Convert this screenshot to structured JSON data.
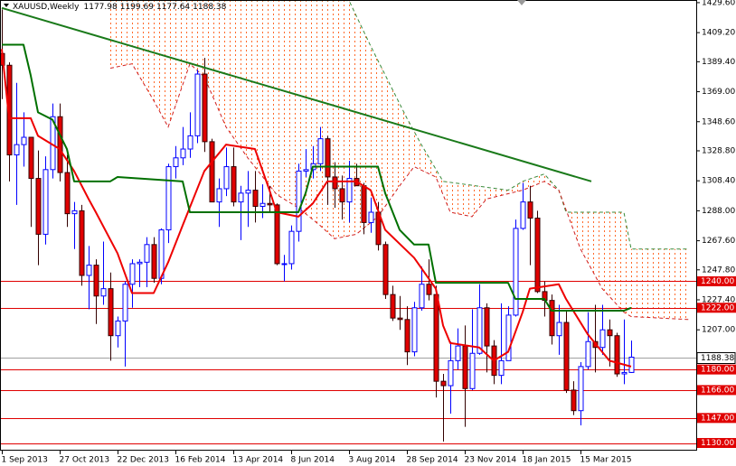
{
  "chart_data": {
    "type": "candlestick",
    "title": "XAUUSD,Weekly",
    "categories": [
      "1 Sep 2013",
      null,
      null,
      null,
      null,
      null,
      null,
      null,
      "27 Oct 2013",
      null,
      null,
      null,
      null,
      null,
      null,
      null,
      "22 Dec 2013",
      null,
      null,
      null,
      null,
      null,
      null,
      null,
      "16 Feb 2014",
      null,
      null,
      null,
      null,
      null,
      null,
      null,
      "13 Apr 2014",
      null,
      null,
      null,
      null,
      null,
      null,
      null,
      "8 Jun 2014",
      null,
      null,
      null,
      null,
      null,
      null,
      null,
      "3 Aug 2014",
      null,
      null,
      null,
      null,
      null,
      null,
      null,
      "28 Sep 2014",
      null,
      null,
      null,
      null,
      null,
      null,
      null,
      "23 Nov 2014",
      null,
      null,
      null,
      null,
      null,
      null,
      null,
      "18 Jan 2015",
      null,
      null,
      null,
      null,
      null,
      null,
      null,
      "15 Mar 2015",
      null,
      null,
      null,
      null,
      null,
      null,
      null
    ],
    "open": [
      1395,
      1387,
      1326,
      1333,
      1338,
      1310,
      1272,
      1316,
      1352,
      1314,
      1286,
      1288,
      1244,
      1251,
      1230,
      1235,
      1203,
      1213,
      1238,
      1252,
      1253,
      1265,
      1242,
      1275,
      1318,
      1324,
      1330,
      1339,
      1381,
      1335,
      1294,
      1303,
      1318,
      1294,
      1300,
      1302,
      1291,
      1293,
      1292,
      1252,
      1252,
      1274,
      1315,
      1316,
      1320,
      1337,
      1311,
      1303,
      1294,
      1310,
      1305,
      1280,
      1287,
      1265,
      1231,
      1215,
      1214,
      1192,
      1222,
      1238,
      1231,
      1172,
      1169,
      1186,
      1196,
      1167,
      1191,
      1222,
      1196,
      1176,
      1186,
      1217,
      1276,
      1294,
      1283,
      1233,
      1227,
      1203,
      1212,
      1166,
      1152,
      1182,
      1199,
      1195,
      1207,
      1203,
      1177,
      1177.98
    ],
    "high": [
      1425,
      1389,
      1375,
      1355,
      1338,
      1329,
      1325,
      1361,
      1361,
      1326,
      1294,
      1292,
      1264,
      1255,
      1267,
      1246,
      1216,
      1240,
      1255,
      1255,
      1270,
      1270,
      1276,
      1320,
      1332,
      1345,
      1355,
      1384,
      1392,
      1337,
      1310,
      1331,
      1331,
      1305,
      1315,
      1315,
      1306,
      1305,
      1293,
      1258,
      1278,
      1320,
      1330,
      1332,
      1345,
      1339,
      1321,
      1312,
      1322,
      1320,
      1307,
      1297,
      1294,
      1267,
      1237,
      1230,
      1223,
      1226,
      1250,
      1255,
      1237,
      1177,
      1199,
      1208,
      1210,
      1221,
      1238,
      1225,
      1200,
      1225,
      1223,
      1282,
      1307,
      1305,
      1288,
      1240,
      1231,
      1224,
      1220,
      1172,
      1185,
      1219,
      1224,
      1224,
      1214,
      1205,
      1214,
      1199.69
    ],
    "low": [
      1364,
      1308,
      1292,
      1318,
      1277,
      1251,
      1265,
      1310,
      1308,
      1277,
      1262,
      1237,
      1221,
      1211,
      1224,
      1186,
      1195,
      1182,
      1222,
      1236,
      1236,
      1239,
      1238,
      1266,
      1310,
      1319,
      1324,
      1334,
      1328,
      1296,
      1277,
      1298,
      1291,
      1268,
      1277,
      1280,
      1283,
      1287,
      1251,
      1240,
      1248,
      1267,
      1311,
      1310,
      1315,
      1292,
      1290,
      1282,
      1280,
      1305,
      1272,
      1273,
      1261,
      1228,
      1213,
      1207,
      1183,
      1189,
      1220,
      1227,
      1161,
      1131,
      1150,
      1180,
      1141,
      1166,
      1190,
      1178,
      1170,
      1170,
      1186,
      1216,
      1275,
      1251,
      1232,
      1216,
      1197,
      1190,
      1164,
      1149,
      1142,
      1180,
      1178,
      1190,
      1182,
      1175,
      1170,
      1177.64
    ],
    "close": [
      1387,
      1326,
      1333,
      1338,
      1310,
      1272,
      1316,
      1352,
      1314,
      1286,
      1288,
      1244,
      1251,
      1230,
      1235,
      1203,
      1213,
      1238,
      1252,
      1253,
      1265,
      1242,
      1275,
      1318,
      1324,
      1330,
      1339,
      1381,
      1335,
      1294,
      1303,
      1318,
      1294,
      1300,
      1302,
      1291,
      1293,
      1292,
      1252,
      1252,
      1274,
      1315,
      1316,
      1320,
      1337,
      1311,
      1303,
      1294,
      1310,
      1305,
      1280,
      1287,
      1265,
      1231,
      1215,
      1214,
      1192,
      1222,
      1238,
      1231,
      1172,
      1169,
      1186,
      1196,
      1167,
      1191,
      1222,
      1196,
      1176,
      1186,
      1217,
      1276,
      1294,
      1283,
      1233,
      1227,
      1203,
      1212,
      1166,
      1152,
      1182,
      1199,
      1195,
      1207,
      1203,
      1177,
      1178,
      1188.38
    ],
    "up_color": "#0000ff",
    "down_color": "#e00000",
    "xlim": [
      -0.25,
      96
    ],
    "ylim": [
      1125.4,
      1431.4
    ],
    "yticks": [
      {
        "value": 1429.6,
        "label": "1429.60"
      },
      {
        "value": 1409.2,
        "label": "1409.20"
      },
      {
        "value": 1389.4,
        "label": "1389.40"
      },
      {
        "value": 1369,
        "label": "1369.00"
      },
      {
        "value": 1348.6,
        "label": "1348.60"
      },
      {
        "value": 1328.8,
        "label": "1328.80"
      },
      {
        "value": 1308.4,
        "label": "1308.40"
      },
      {
        "value": 1288,
        "label": "1288.00"
      },
      {
        "value": 1267.6,
        "label": "1267.60"
      },
      {
        "value": 1247.8,
        "label": "1247.80"
      },
      {
        "value": 1227.4,
        "label": "1227.40"
      },
      {
        "value": 1207,
        "label": "1207.00"
      }
    ],
    "levels": [
      {
        "value": 1240,
        "label": "1240.00"
      },
      {
        "value": 1222,
        "label": "1222.00"
      },
      {
        "value": 1180,
        "label": "1180.00"
      },
      {
        "value": 1166,
        "label": "1166.00"
      },
      {
        "value": 1147,
        "label": "1147.00"
      },
      {
        "value": 1130,
        "label": "1130.00"
      }
    ],
    "level_color": "#e00000",
    "tenkan": {
      "color": "#ee0000",
      "x": [
        0,
        1,
        4,
        5,
        8,
        10,
        12,
        13,
        16,
        18,
        21,
        23,
        25,
        28,
        31,
        35,
        37,
        38,
        41,
        43,
        45,
        49,
        51,
        53,
        57,
        60,
        61,
        62,
        66,
        68,
        70,
        72,
        73,
        77,
        78,
        81,
        84,
        87
      ],
      "values": [
        1398,
        1351,
        1351,
        1339,
        1330,
        1315,
        1296,
        1287,
        1259,
        1232,
        1232,
        1253,
        1278,
        1315,
        1333,
        1330,
        1302,
        1287,
        1284,
        1293,
        1308,
        1308,
        1302,
        1275,
        1256,
        1235,
        1210,
        1198,
        1195,
        1186,
        1192,
        1219,
        1235,
        1238,
        1228,
        1204,
        1186,
        1182
      ]
    },
    "kijun": {
      "color": "#007000",
      "x": [
        0,
        3,
        4,
        5,
        7,
        9,
        10,
        15,
        16,
        25,
        26,
        41,
        42,
        43,
        52,
        53,
        55,
        57,
        59,
        60,
        70,
        71,
        75,
        76,
        86,
        87
      ],
      "values": [
        1401,
        1401,
        1380,
        1355,
        1350,
        1330,
        1308,
        1308,
        1311,
        1308,
        1287,
        1287,
        1300,
        1318,
        1318,
        1300,
        1275,
        1265,
        1265,
        1239,
        1239,
        1228,
        1228,
        1220,
        1220,
        1222
      ]
    },
    "trendline": {
      "color": "#1a7a1a",
      "x": [
        0,
        81.5
      ],
      "values": [
        1426,
        1308
      ]
    },
    "cloud": {
      "fill": "#ff6a2a",
      "upper": {
        "color": "#3a8a3a",
        "x": [
          15,
          48,
          51,
          56,
          58,
          61,
          70,
          72,
          75,
          77,
          78,
          86,
          87,
          95
        ],
        "values": [
          1431,
          1431,
          1400,
          1351,
          1333,
          1308,
          1302,
          1308,
          1313,
          1302,
          1287,
          1287,
          1262,
          1262
        ]
      },
      "lower": {
        "color": "#d02020",
        "x": [
          15,
          18,
          21,
          23,
          26,
          28,
          31,
          34,
          38,
          41,
          44,
          46,
          49,
          52,
          55,
          57,
          60,
          62,
          65,
          67,
          72,
          75,
          77,
          80,
          83,
          86,
          87,
          95
        ],
        "values": [
          1385,
          1388,
          1363,
          1345,
          1388,
          1379,
          1345,
          1324,
          1299,
          1290,
          1278,
          1269,
          1272,
          1284,
          1305,
          1318,
          1311,
          1287,
          1284,
          1296,
          1302,
          1308,
          1302,
          1262,
          1235,
          1219,
          1216,
          1214
        ]
      }
    }
  }
}
